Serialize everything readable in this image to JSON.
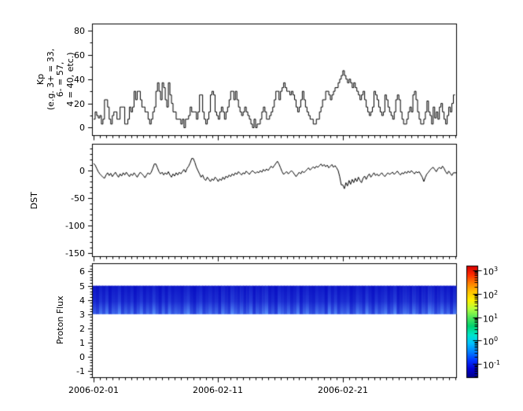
{
  "figure": {
    "background": "#ffffff"
  },
  "xaxis": {
    "tick_labels": [
      "2006-02-01",
      "2006-02-11",
      "2006-02-21"
    ],
    "tick_days": [
      0,
      10,
      20
    ],
    "range_days": [
      -0.1,
      29.1
    ],
    "minor_interval_days": 0.5
  },
  "chart_data": [
    {
      "type": "line",
      "name": "kp-index",
      "line_style": "step",
      "line_color": "#000000",
      "ylabel_lines": [
        "Kp",
        "(e.g. 3+ = 33,",
        "6- = 57,",
        "4 = 40, etc.)"
      ],
      "ylim": [
        -6.5,
        85.5
      ],
      "yticks": [
        0,
        20,
        40,
        60,
        80
      ],
      "y_minor_interval": 10,
      "interval_hours": 3,
      "values": [
        7,
        13,
        10,
        8,
        10,
        3,
        7,
        23,
        23,
        17,
        7,
        3,
        10,
        13,
        13,
        7,
        7,
        17,
        17,
        17,
        3,
        3,
        7,
        17,
        13,
        17,
        30,
        23,
        30,
        30,
        23,
        17,
        17,
        13,
        13,
        7,
        3,
        7,
        13,
        17,
        30,
        37,
        30,
        23,
        37,
        33,
        23,
        17,
        37,
        27,
        20,
        13,
        13,
        7,
        7,
        7,
        3,
        7,
        0,
        7,
        7,
        10,
        17,
        13,
        13,
        13,
        7,
        13,
        27,
        27,
        13,
        7,
        3,
        7,
        13,
        27,
        30,
        27,
        13,
        10,
        7,
        13,
        17,
        13,
        7,
        13,
        17,
        23,
        30,
        30,
        23,
        30,
        23,
        17,
        13,
        10,
        13,
        17,
        13,
        10,
        7,
        3,
        0,
        7,
        0,
        3,
        3,
        7,
        13,
        17,
        13,
        7,
        7,
        10,
        13,
        17,
        23,
        30,
        30,
        23,
        30,
        33,
        37,
        33,
        30,
        30,
        27,
        30,
        27,
        23,
        17,
        13,
        17,
        23,
        30,
        23,
        17,
        13,
        10,
        7,
        7,
        3,
        3,
        7,
        7,
        13,
        17,
        23,
        23,
        30,
        30,
        27,
        23,
        27,
        30,
        33,
        33,
        37,
        40,
        43,
        47,
        43,
        40,
        37,
        40,
        37,
        33,
        37,
        33,
        30,
        27,
        23,
        27,
        30,
        23,
        17,
        13,
        10,
        13,
        17,
        30,
        27,
        23,
        17,
        13,
        10,
        13,
        27,
        23,
        17,
        13,
        10,
        7,
        13,
        23,
        27,
        23,
        13,
        7,
        3,
        3,
        7,
        13,
        17,
        13,
        27,
        30,
        23,
        13,
        7,
        3,
        3,
        7,
        13,
        22,
        13,
        10,
        3,
        17,
        8,
        13,
        7,
        17,
        20,
        13,
        7,
        3,
        10,
        17,
        13,
        20,
        27
      ]
    },
    {
      "type": "line",
      "name": "dst-index",
      "line_style": "linear",
      "line_color": "#000000",
      "ylabel": "DST",
      "ylim": [
        -156.5,
        48
      ],
      "yticks": [
        0,
        -50,
        -100,
        -150
      ],
      "y_minor_interval": 10,
      "interval_hours": 3,
      "values": [
        13,
        10,
        4,
        -2,
        -6,
        -9,
        -12,
        -14,
        -8,
        -4,
        -9,
        -5,
        -11,
        -7,
        -3,
        -8,
        -12,
        -6,
        -10,
        -4,
        -8,
        -3,
        -7,
        -11,
        -6,
        -9,
        -4,
        -8,
        -12,
        -7,
        -3,
        -6,
        -9,
        -13,
        -8,
        -4,
        -7,
        -3,
        4,
        12,
        12,
        5,
        -2,
        -6,
        -3,
        -8,
        -4,
        -7,
        -2,
        -8,
        -12,
        -6,
        -10,
        -4,
        -8,
        -3,
        -6,
        -2,
        2,
        -3,
        4,
        8,
        14,
        22,
        22,
        15,
        6,
        0,
        -6,
        -12,
        -8,
        -15,
        -18,
        -12,
        -16,
        -20,
        -15,
        -18,
        -12,
        -15,
        -20,
        -15,
        -18,
        -12,
        -16,
        -10,
        -13,
        -8,
        -11,
        -6,
        -9,
        -4,
        -7,
        -2,
        -5,
        -8,
        -4,
        -6,
        -1,
        -4,
        -7,
        -3,
        0,
        -3,
        -5,
        -2,
        -4,
        0,
        -3,
        2,
        -1,
        3,
        0,
        4,
        8,
        5,
        9,
        13,
        17,
        12,
        5,
        -2,
        -7,
        -4,
        -2,
        -6,
        -3,
        0,
        -3,
        -7,
        -11,
        -7,
        -3,
        -6,
        -1,
        -4,
        -1,
        2,
        5,
        1,
        4,
        7,
        4,
        8,
        6,
        9,
        12,
        8,
        11,
        7,
        10,
        5,
        8,
        11,
        6,
        9,
        5,
        0,
        -11,
        -26,
        -26,
        -33,
        -22,
        -28,
        -18,
        -25,
        -16,
        -22,
        -14,
        -20,
        -12,
        -18,
        -22,
        -14,
        -10,
        -16,
        -10,
        -6,
        -12,
        -8,
        -4,
        -9,
        -6,
        -10,
        -7,
        -4,
        -8,
        -11,
        -7,
        -4,
        -7,
        -5,
        -3,
        -7,
        -4,
        -1,
        -5,
        -8,
        -4,
        -6,
        -2,
        -5,
        -1,
        -4,
        0,
        -3,
        -6,
        -2,
        -4,
        -2,
        -7,
        -12,
        -20,
        -12,
        -6,
        -3,
        1,
        4,
        6,
        2,
        -2,
        3,
        6,
        3,
        8,
        4,
        -2,
        -6,
        -1,
        -5,
        -9,
        -4
      ]
    },
    {
      "type": "heatmap",
      "name": "proton-flux-spectrogram",
      "ylabel": "Proton Flux",
      "ylim": [
        -1.45,
        6.55
      ],
      "yticks": [
        -1,
        0,
        1,
        2,
        3,
        4,
        5,
        6
      ],
      "y_minor_interval": 0.2,
      "band": {
        "ymin": 3,
        "ymax": 5,
        "flux_log10_range": [
          -1,
          0.5
        ],
        "color_low": "#0000be",
        "color_high": "#5a96ff",
        "columns": [
          5,
          3,
          7,
          4,
          8,
          2,
          6,
          5,
          9,
          3,
          6,
          4,
          7,
          2,
          5,
          8,
          3,
          6,
          4,
          9,
          5,
          2,
          7,
          3,
          8,
          4,
          6,
          5,
          3,
          7,
          9,
          4,
          2,
          6,
          8,
          3,
          5,
          7,
          4,
          6,
          2,
          8,
          5,
          3,
          9,
          6,
          4,
          7,
          3,
          5,
          8,
          2,
          6,
          4,
          7,
          9,
          3,
          5,
          2,
          8,
          6,
          4,
          7,
          3,
          5,
          9,
          2,
          6,
          8,
          4,
          3,
          7,
          5,
          6,
          2,
          9,
          4,
          8,
          3,
          6,
          5,
          7,
          2,
          4,
          8,
          6,
          3,
          9,
          5,
          2,
          7,
          4,
          6,
          8,
          3,
          5,
          9,
          2,
          4,
          7,
          6,
          3,
          8,
          5,
          2,
          6,
          4,
          9,
          7,
          3,
          5,
          8,
          4,
          6,
          2,
          7
        ]
      }
    }
  ],
  "colorbar": {
    "scale": "log",
    "colormap": "jet",
    "tick_labels": [
      "10^3",
      "10^2",
      "10^1",
      "10^0",
      "10^-1"
    ],
    "tick_exponents": [
      3,
      2,
      1,
      0,
      -1
    ],
    "range_log10": [
      -1.57,
      3.17
    ],
    "gradient_top_to_bottom": [
      "#d40000",
      "#ff2a00",
      "#ff7e00",
      "#ffc100",
      "#fff200",
      "#b4ff3c",
      "#50e65a",
      "#00d26e",
      "#00e6c8",
      "#00c3ff",
      "#0080ff",
      "#0033ff",
      "#0000d2",
      "#000086"
    ]
  }
}
